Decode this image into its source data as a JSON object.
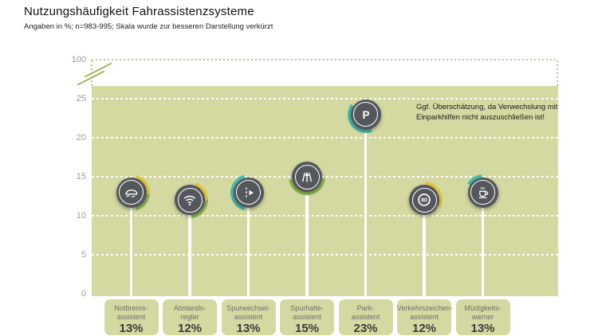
{
  "header": {
    "title": "Nutzungshäufigkeit Fahrassistenzsysteme",
    "subtitle": "Angaben in %; n=983-995; Skala wurde zur besseren Darstellung verkürzt"
  },
  "annotation": "Ggf. Überschätzung, da Verwechslung mit Einparkhilfen nicht auszuschließen ist!",
  "colors": {
    "plot_bg": "#d4d9a1",
    "label_box_bg": "#d4d9a1",
    "icon_circle": "#54575b",
    "accent_yellow": "#e2c73e",
    "accent_green": "#8fba50",
    "accent_teal": "#46bdb2",
    "grid_dash": "#ffffff",
    "axis_text": "#9b9b9b",
    "dotted_axis": "#bcc87e"
  },
  "chart_data": {
    "type": "lollipop-bar",
    "title": "Nutzungshäufigkeit Fahrassistenzsysteme",
    "subtitle": "Angaben in %; n=983-995; Skala wurde zur besseren Darstellung verkürzt",
    "categories": [
      "Notbremsassistent",
      "Abstandsregler",
      "Spurwechselassistent",
      "Spurhalteassistent",
      "Parkassistent",
      "Verkehrszeichenassistent",
      "Müdigkeitswarner"
    ],
    "category_lines": [
      [
        "Notbrems-",
        "assistent"
      ],
      [
        "Abstands-",
        "regler"
      ],
      [
        "Spurwechsel-",
        "assistent"
      ],
      [
        "Spurhalte-",
        "assistent"
      ],
      [
        "Park-",
        "assistent"
      ],
      [
        "Verkehrszeichen-",
        "assistent"
      ],
      [
        "Müdigkeits-",
        "warner"
      ]
    ],
    "values": [
      13,
      12,
      13,
      15,
      23,
      12,
      13
    ],
    "value_labels": [
      "13%",
      "12%",
      "13%",
      "15%",
      "23%",
      "12%",
      "13%"
    ],
    "icons": [
      "emergency-brake-icon",
      "radar-waves-icon",
      "lane-change-icon",
      "lane-keep-icon",
      "parking-icon",
      "speed-limit-80-icon",
      "coffee-cup-icon"
    ],
    "ring_arcs": [
      [
        [
          "accent_yellow",
          15,
          95
        ],
        [
          "accent_green",
          95,
          165
        ]
      ],
      [
        [
          "accent_yellow",
          20,
          90
        ],
        [
          "accent_green",
          90,
          175
        ]
      ],
      [
        [
          "accent_teal",
          195,
          345
        ]
      ],
      [
        [
          "accent_green",
          95,
          260
        ]
      ],
      [
        [
          "accent_teal",
          160,
          305
        ]
      ],
      [
        [
          "accent_yellow",
          5,
          115
        ]
      ],
      [
        [
          "accent_teal",
          300,
          355
        ]
      ]
    ],
    "xlabel": "",
    "ylabel": "",
    "y_ticks": [
      0,
      5,
      10,
      15,
      20,
      25
    ],
    "y_top_tick": "100",
    "ylim": [
      0,
      25
    ],
    "axis_note": "y-axis broken between 25 and 100",
    "grid": true,
    "legend": false,
    "annotation": "Ggf. Überschätzung, da Verwechslung mit Einparkhilfen nicht auszuschließen ist!"
  }
}
